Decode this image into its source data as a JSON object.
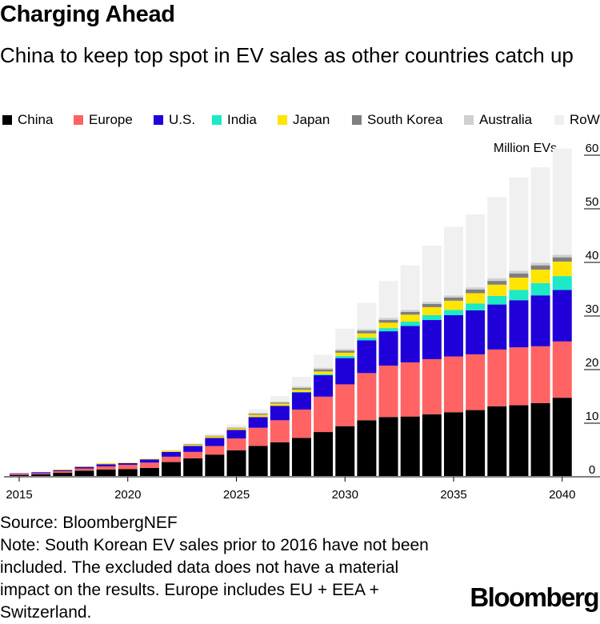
{
  "header": {
    "title": "Charging Ahead",
    "subtitle": "China to keep top spot in EV sales as other countries catch up"
  },
  "footer": {
    "source": "Source: BloombergNEF",
    "note": "Note: South Korean EV sales prior to 2016 have not been included. The excluded data does not have a material impact on the results. Europe includes EU + EEA + Switzerland.",
    "logo": "Bloomberg"
  },
  "chart_data": {
    "type": "bar",
    "stacked": true,
    "unit_label": "Million EVs",
    "x": [
      2015,
      2016,
      2017,
      2018,
      2019,
      2020,
      2021,
      2022,
      2023,
      2024,
      2025,
      2026,
      2027,
      2028,
      2029,
      2030,
      2031,
      2032,
      2033,
      2034,
      2035,
      2036,
      2037,
      2038,
      2039,
      2040
    ],
    "x_ticks": [
      "2015",
      "2020",
      "2025",
      "2030",
      "2035",
      "2040"
    ],
    "y_ticks": [
      "0",
      "10",
      "20",
      "30",
      "40",
      "50",
      "60"
    ],
    "ylim": [
      0,
      60
    ],
    "y_axis_side": "right",
    "legend_position": "top",
    "grid": false,
    "series": [
      {
        "name": "China",
        "color": "#000000",
        "values": [
          0.2,
          0.3,
          0.6,
          1.0,
          1.2,
          1.3,
          1.5,
          2.6,
          3.3,
          4.0,
          4.8,
          5.6,
          6.3,
          7.1,
          8.2,
          9.3,
          10.4,
          11.0,
          11.1,
          11.5,
          11.9,
          12.3,
          13.0,
          13.2,
          13.6,
          14.6
        ]
      },
      {
        "name": "Europe",
        "color": "#ff6363",
        "values": [
          0.2,
          0.2,
          0.3,
          0.4,
          0.6,
          0.8,
          1.0,
          1.0,
          1.2,
          1.6,
          2.2,
          3.4,
          4.1,
          5.3,
          6.6,
          7.8,
          8.8,
          9.6,
          10.1,
          10.3,
          10.4,
          10.4,
          10.6,
          10.8,
          10.6,
          10.5
        ]
      },
      {
        "name": "U.S.",
        "color": "#1f00d8",
        "values": [
          0.1,
          0.2,
          0.2,
          0.3,
          0.4,
          0.3,
          0.6,
          0.9,
          1.1,
          1.5,
          1.6,
          2.0,
          2.7,
          3.2,
          4.0,
          4.9,
          6.1,
          6.4,
          6.8,
          7.3,
          7.7,
          8.2,
          8.4,
          8.8,
          9.5,
          9.6
        ]
      },
      {
        "name": "India",
        "color": "#1de9c6",
        "values": [
          0,
          0,
          0,
          0,
          0,
          0,
          0,
          0,
          0,
          0,
          0,
          0,
          0,
          0.1,
          0.2,
          0.4,
          0.5,
          0.6,
          0.8,
          0.9,
          1.0,
          1.3,
          1.6,
          1.9,
          2.3,
          2.6
        ]
      },
      {
        "name": "Japan",
        "color": "#ffe500",
        "values": [
          0,
          0,
          0.1,
          0.1,
          0.2,
          0.1,
          0.1,
          0.2,
          0.2,
          0.3,
          0.3,
          0.4,
          0.4,
          0.4,
          0.5,
          0.6,
          0.8,
          1.0,
          1.3,
          1.5,
          1.7,
          1.9,
          2.1,
          2.3,
          2.5,
          2.7
        ]
      },
      {
        "name": "South Korea",
        "color": "#7f7f7f",
        "values": [
          0,
          0,
          0,
          0,
          0,
          0,
          0,
          0,
          0.1,
          0.1,
          0.1,
          0.2,
          0.2,
          0.3,
          0.4,
          0.4,
          0.5,
          0.5,
          0.5,
          0.6,
          0.6,
          0.7,
          0.7,
          0.8,
          0.8,
          0.8
        ]
      },
      {
        "name": "Australia",
        "color": "#cfcfcf",
        "values": [
          0,
          0,
          0,
          0,
          0,
          0,
          0,
          0.1,
          0.1,
          0.1,
          0.1,
          0.2,
          0.2,
          0.3,
          0.3,
          0.3,
          0.3,
          0.4,
          0.4,
          0.4,
          0.4,
          0.4,
          0.5,
          0.5,
          0.5,
          0.5
        ]
      },
      {
        "name": "RoW",
        "color": "#f0f0f0",
        "values": [
          0,
          0,
          0,
          0,
          0,
          0,
          0.1,
          0.1,
          0.2,
          0.3,
          0.5,
          0.7,
          1.0,
          1.8,
          2.4,
          3.8,
          4.9,
          6.9,
          8.3,
          10.5,
          12.8,
          13.6,
          15.1,
          17.4,
          17.8,
          19.8
        ]
      }
    ]
  }
}
